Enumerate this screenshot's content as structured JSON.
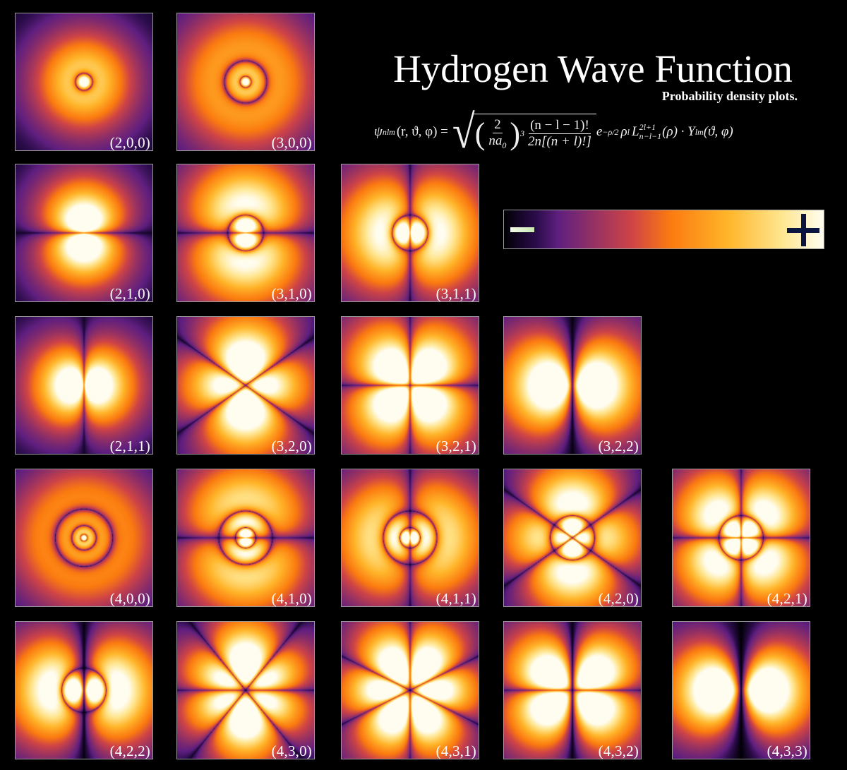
{
  "header": {
    "title": "Hydrogen Wave Function",
    "subtitle": "Probability density plots."
  },
  "formula": {
    "psi": "ψ",
    "psi_sub": "nlm",
    "lhs_args": "(r, ϑ, φ) =",
    "two": "2",
    "n": "n",
    "a0": "a",
    "a0_sub": "0",
    "cube": "3",
    "fact_num": "(n − l − 1)!",
    "fact_den": "2n[(n + l)!]",
    "exp_base": "e",
    "exp_sup": "−ρ/2",
    "rho": "ρ",
    "rho_sup": "l",
    "laguerre": "L",
    "laguerre_sup": "2l+1",
    "laguerre_sub": "n−l−1",
    "laguerre_arg": "(ρ) · Y",
    "y_sub": "lm",
    "y_args": "(ϑ, φ)"
  },
  "colorbar": {
    "low_icon": "minus-icon",
    "high_icon": "plus-icon",
    "colors": [
      "#000004",
      "#2a0c4a",
      "#5f1f7f",
      "#cf4446",
      "#fb7a10",
      "#ffb52a",
      "#ffe690",
      "#fffdf0"
    ]
  },
  "panels": [
    {
      "label": "(2,0,0)",
      "n": 2,
      "l": 0,
      "m": 0
    },
    {
      "label": "(3,0,0)",
      "n": 3,
      "l": 0,
      "m": 0
    },
    {
      "label": "(2,1,0)",
      "n": 2,
      "l": 1,
      "m": 0
    },
    {
      "label": "(3,1,0)",
      "n": 3,
      "l": 1,
      "m": 0
    },
    {
      "label": "(3,1,1)",
      "n": 3,
      "l": 1,
      "m": 1
    },
    {
      "label": "(2,1,1)",
      "n": 2,
      "l": 1,
      "m": 1
    },
    {
      "label": "(3,2,0)",
      "n": 3,
      "l": 2,
      "m": 0
    },
    {
      "label": "(3,2,1)",
      "n": 3,
      "l": 2,
      "m": 1
    },
    {
      "label": "(3,2,2)",
      "n": 3,
      "l": 2,
      "m": 2
    },
    {
      "label": "(4,0,0)",
      "n": 4,
      "l": 0,
      "m": 0
    },
    {
      "label": "(4,1,0)",
      "n": 4,
      "l": 1,
      "m": 0
    },
    {
      "label": "(4,1,1)",
      "n": 4,
      "l": 1,
      "m": 1
    },
    {
      "label": "(4,2,0)",
      "n": 4,
      "l": 2,
      "m": 0
    },
    {
      "label": "(4,2,1)",
      "n": 4,
      "l": 2,
      "m": 1
    },
    {
      "label": "(4,2,2)",
      "n": 4,
      "l": 2,
      "m": 2
    },
    {
      "label": "(4,3,0)",
      "n": 4,
      "l": 3,
      "m": 0
    },
    {
      "label": "(4,3,1)",
      "n": 4,
      "l": 3,
      "m": 1
    },
    {
      "label": "(4,3,2)",
      "n": 4,
      "l": 3,
      "m": 2
    },
    {
      "label": "(4,3,3)",
      "n": 4,
      "l": 3,
      "m": 3
    }
  ]
}
